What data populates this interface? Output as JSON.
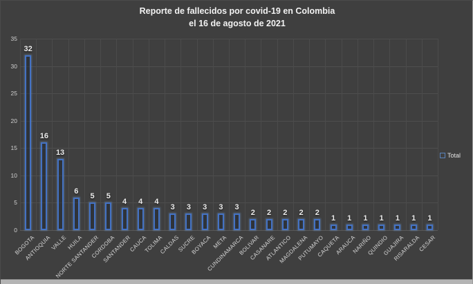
{
  "chart_data": {
    "type": "bar",
    "title": "Reporte de fallecidos por covid-19 en Colombia el 16 de agosto de 2021",
    "title_lines": [
      "Reporte de fallecidos por covid-19 en Colombia",
      "el 16 de agosto de 2021"
    ],
    "categories": [
      "BOGOTA",
      "ANTIOQUIA",
      "VALLE",
      "HUILA",
      "NORTE SANTANDER",
      "CORDOBA",
      "SANTANDER",
      "CAUCA",
      "TOLIMA",
      "CALDAS",
      "SUCRE",
      "BOYACA",
      "META",
      "CUNDINAMARCA",
      "BOLIVAR",
      "CASANARE",
      "ATLANTICO",
      "MAGDALENA",
      "PUTUMAYO",
      "CAQUETA",
      "ARAUCA",
      "NARIÑO",
      "QUINDIO",
      "GUAJIRA",
      "RISARALDA",
      "CESAR"
    ],
    "series": [
      {
        "name": "Total",
        "values": [
          32,
          16,
          13,
          6,
          5,
          5,
          4,
          4,
          4,
          3,
          3,
          3,
          3,
          3,
          2,
          2,
          2,
          2,
          2,
          1,
          1,
          1,
          1,
          1,
          1,
          1
        ]
      }
    ],
    "xlabel": "",
    "ylabel": "",
    "ylim": [
      0,
      35
    ],
    "y_ticks": [
      0,
      5,
      10,
      15,
      20,
      25,
      30,
      35
    ],
    "grid": true,
    "data_labels": true,
    "legend_position": "right",
    "colors": {
      "background": "#3f3f3f",
      "gridline": "#4e4e4e",
      "bar_border": "#4472c4",
      "value_label": "#ececec",
      "axis_label": "#d9d9d9",
      "title": "#f2f2f2"
    }
  }
}
